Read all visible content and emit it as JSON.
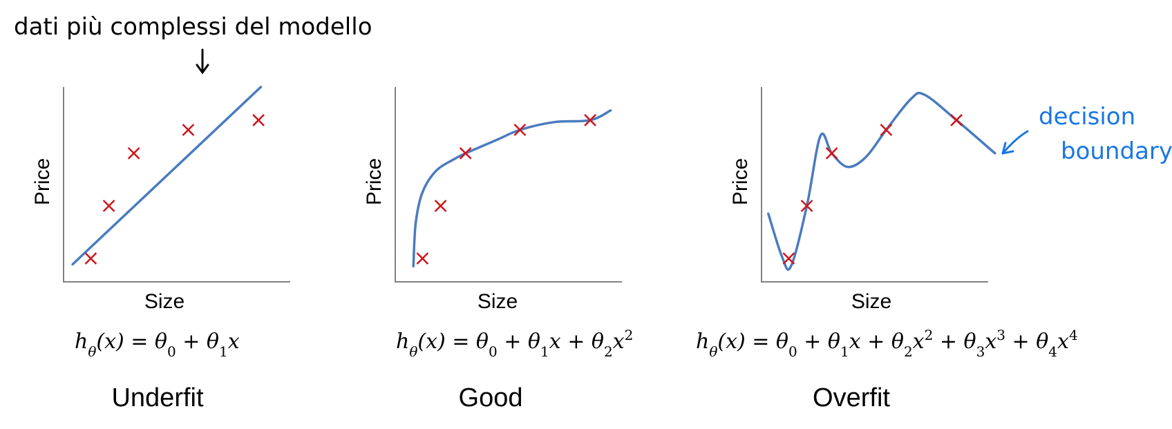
{
  "annotations": {
    "top_note": "dati più complessi del modello",
    "decision_label_line1": "decision",
    "decision_label_line2": "boundary"
  },
  "colors": {
    "curve": "#4a7bbf",
    "marker": "#d0141b",
    "axis": "#808080",
    "ink": "#000000",
    "annotation_blue": "#1877e6"
  },
  "chart_data": [
    {
      "type": "line",
      "title": "Underfit",
      "xlabel": "Size",
      "ylabel": "Price",
      "formula": "hθ(x) =  θ0 + θ1x",
      "grid": false,
      "points": [
        [
          1.2,
          1.2
        ],
        [
          2.0,
          3.9
        ],
        [
          3.1,
          6.6
        ],
        [
          5.5,
          7.8
        ],
        [
          8.6,
          8.3
        ]
      ],
      "fit": [
        [
          0.4,
          0.9
        ],
        [
          8.7,
          10.0
        ]
      ]
    },
    {
      "type": "line",
      "title": "Good",
      "xlabel": "Size",
      "ylabel": "Price",
      "formula": "hθ(x) = θ0 + θ1x + θ2x2",
      "grid": false,
      "points": [
        [
          1.2,
          1.2
        ],
        [
          2.0,
          3.9
        ],
        [
          3.1,
          6.6
        ],
        [
          5.5,
          7.8
        ],
        [
          8.6,
          8.3
        ]
      ],
      "fit": [
        [
          0.8,
          0.8
        ],
        [
          0.9,
          3.0
        ],
        [
          1.2,
          4.6
        ],
        [
          1.8,
          5.7
        ],
        [
          2.6,
          6.3
        ],
        [
          3.1,
          6.6
        ],
        [
          4.5,
          7.3
        ],
        [
          5.5,
          7.8
        ],
        [
          7.0,
          8.2
        ],
        [
          8.6,
          8.3
        ],
        [
          9.5,
          8.8
        ]
      ]
    },
    {
      "type": "line",
      "title": "Overfit",
      "xlabel": "Size",
      "ylabel": "Price",
      "formula": "hθ(x) = θ0 + θ1x + θ2x2 + θ3x3 + θ4x4",
      "grid": false,
      "points": [
        [
          1.2,
          1.2
        ],
        [
          2.0,
          3.9
        ],
        [
          3.1,
          6.6
        ],
        [
          5.5,
          7.8
        ],
        [
          8.6,
          8.3
        ]
      ],
      "fit": [
        [
          0.3,
          3.5
        ],
        [
          0.9,
          1.3
        ],
        [
          1.3,
          0.8
        ],
        [
          2.0,
          3.9
        ],
        [
          2.6,
          7.5
        ],
        [
          3.1,
          6.6
        ],
        [
          3.8,
          5.9
        ],
        [
          4.6,
          6.4
        ],
        [
          5.5,
          7.8
        ],
        [
          6.6,
          9.4
        ],
        [
          7.2,
          9.6
        ],
        [
          8.6,
          8.3
        ],
        [
          10.3,
          6.6
        ]
      ]
    }
  ]
}
